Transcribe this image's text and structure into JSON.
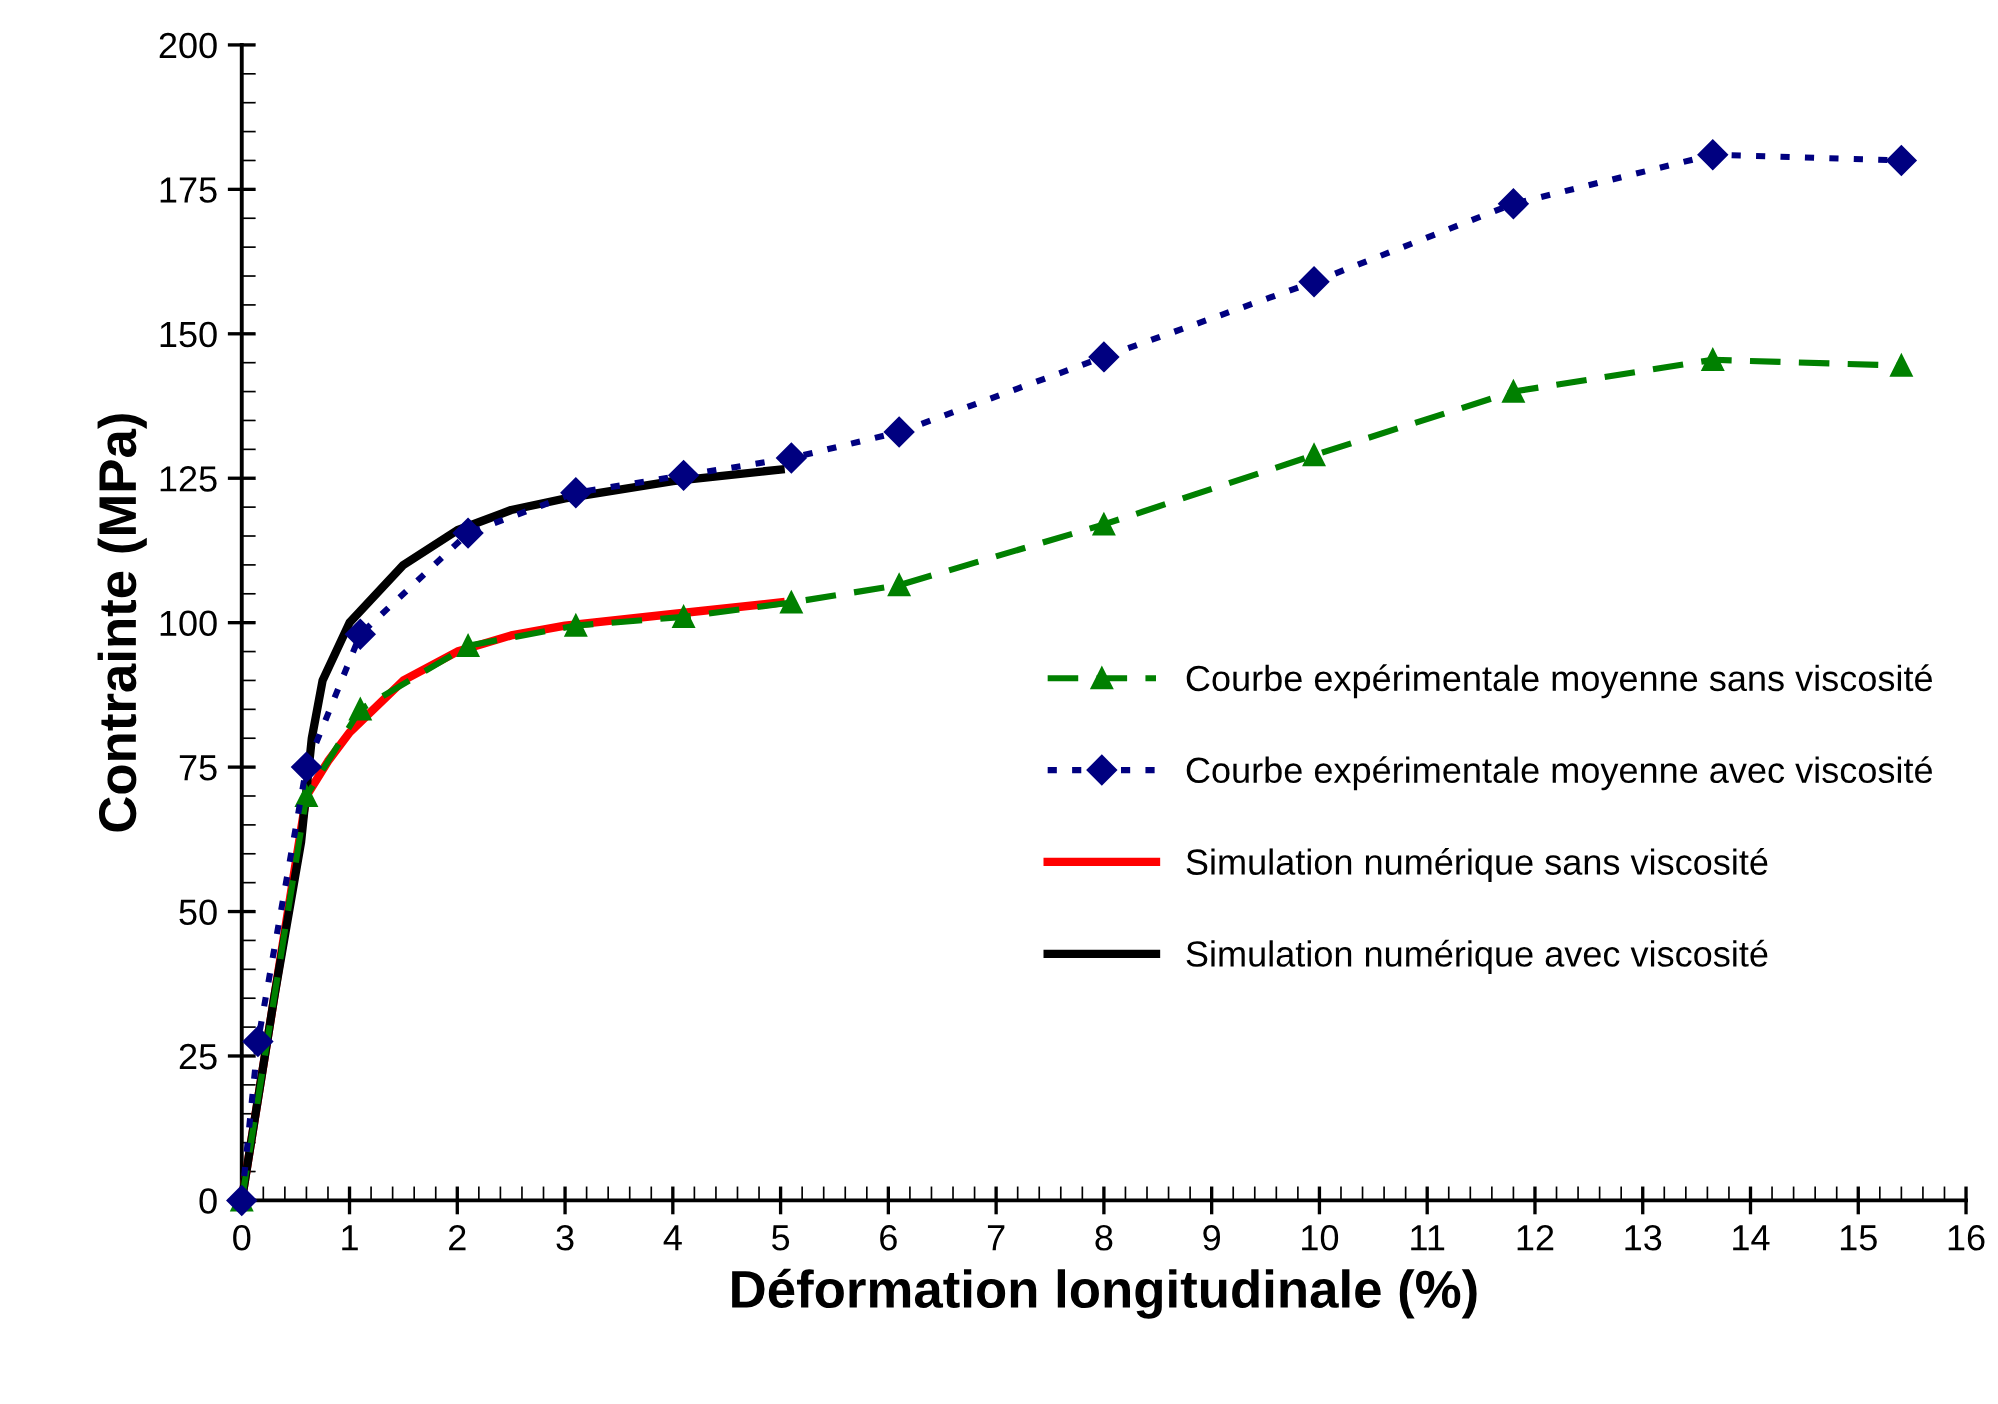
{
  "chart_data": {
    "type": "line",
    "xlabel": "Déformation longitudinale (%)",
    "ylabel": "Contrainte (MPa)",
    "xlim": [
      0,
      16
    ],
    "xticks": [
      0,
      1,
      2,
      3,
      4,
      5,
      6,
      7,
      8,
      9,
      10,
      11,
      12,
      13,
      14,
      15,
      16
    ],
    "ylim": [
      0,
      200
    ],
    "yticks": [
      0,
      25,
      50,
      75,
      100,
      125,
      150,
      175,
      200
    ],
    "grid": false,
    "legend": "right",
    "series": [
      {
        "name": "Courbe expérimentale moyenne sans viscosité",
        "color": "#008000",
        "marker": "triangle",
        "line_style": "dashed",
        "x": [
          0,
          0.6,
          1.1,
          2.1,
          3.1,
          4.1,
          5.1,
          6.1,
          8,
          9.95,
          11.8,
          13.65,
          15.4
        ],
        "values": [
          0,
          70,
          85,
          96,
          99.5,
          101,
          103.5,
          106.5,
          117,
          129,
          140,
          145.5,
          144.5
        ]
      },
      {
        "name": "Courbe expérimentale moyenne avec viscosité",
        "color": "#000080",
        "marker": "diamond",
        "line_style": "dotted",
        "x": [
          0,
          0.15,
          0.6,
          1.1,
          2.1,
          3.1,
          4.1,
          5.1,
          6.1,
          8,
          9.95,
          11.8,
          13.65,
          15.4
        ],
        "values": [
          0,
          27.5,
          75,
          98,
          115.5,
          122.5,
          125.5,
          128.5,
          133,
          146,
          159,
          172.5,
          181,
          180
        ]
      },
      {
        "name": "Simulation numérique sans viscosité",
        "color": "#ff0000",
        "marker": "none",
        "line_style": "solid",
        "x": [
          0,
          0.3,
          0.6,
          0.8,
          1,
          1.5,
          2,
          2.5,
          3,
          4,
          5
        ],
        "values": [
          0,
          35,
          70,
          76,
          81,
          90,
          95,
          97.8,
          99.5,
          101.5,
          103.5
        ]
      },
      {
        "name": "Simulation numérique avec viscosité",
        "color": "#000000",
        "marker": "none",
        "line_style": "solid",
        "x": [
          0,
          0.3,
          0.55,
          0.65,
          0.75,
          1,
          1.5,
          2,
          2.5,
          3,
          4,
          5
        ],
        "values": [
          0,
          35,
          62,
          80,
          90,
          100,
          110,
          116,
          119.5,
          121.5,
          124.5,
          126.5
        ]
      }
    ]
  }
}
